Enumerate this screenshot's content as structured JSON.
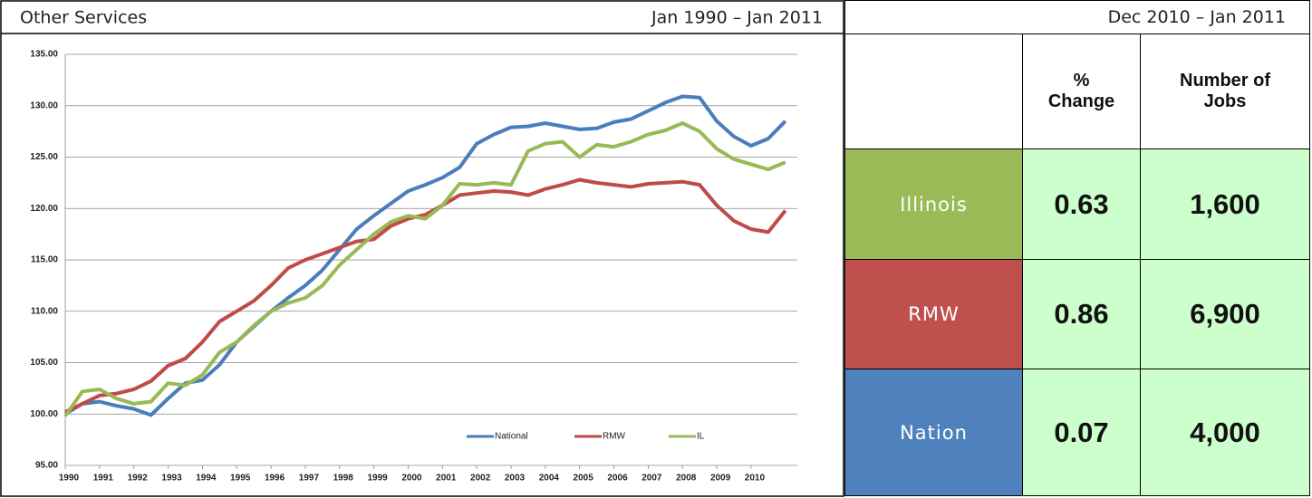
{
  "chart_data": {
    "type": "line",
    "title": "Other Services",
    "subtitle": "Jan 1990 – Jan 2011",
    "x": [
      1990,
      1990.5,
      1991,
      1991.5,
      1992,
      1992.5,
      1993,
      1993.5,
      1994,
      1994.5,
      1995,
      1995.5,
      1996,
      1996.5,
      1997,
      1997.5,
      1998,
      1998.5,
      1999,
      1999.5,
      2000,
      2000.5,
      2001,
      2001.5,
      2002,
      2002.5,
      2003,
      2003.5,
      2004,
      2004.5,
      2005,
      2005.5,
      2006,
      2006.5,
      2007,
      2007.5,
      2008,
      2008.5,
      2009,
      2009.5,
      2010,
      2010.5,
      2011
    ],
    "series": [
      {
        "name": "National",
        "color": "#4a7ebb",
        "values": [
          100.0,
          101.0,
          101.2,
          100.8,
          100.5,
          99.9,
          101.5,
          103.0,
          103.3,
          104.8,
          107.0,
          108.5,
          110.0,
          111.3,
          112.5,
          114.0,
          116.0,
          118.0,
          119.3,
          120.5,
          121.7,
          122.3,
          123.0,
          124.0,
          126.3,
          127.2,
          127.9,
          128.0,
          128.3,
          128.0,
          127.7,
          127.8,
          128.4,
          128.7,
          129.5,
          130.3,
          130.9,
          130.8,
          128.5,
          127.0,
          126.1,
          126.8,
          128.5
        ]
      },
      {
        "name": "RMW",
        "color": "#be4b48",
        "values": [
          100.2,
          101.0,
          101.8,
          102.0,
          102.4,
          103.2,
          104.7,
          105.4,
          107.0,
          109.0,
          110.0,
          111.0,
          112.5,
          114.2,
          115.0,
          115.6,
          116.2,
          116.8,
          117.0,
          118.3,
          119.0,
          119.4,
          120.3,
          121.3,
          121.5,
          121.7,
          121.6,
          121.3,
          121.9,
          122.3,
          122.8,
          122.5,
          122.3,
          122.1,
          122.4,
          122.5,
          122.6,
          122.3,
          120.3,
          118.8,
          118.0,
          117.7,
          119.8
        ]
      },
      {
        "name": "IL",
        "color": "#98b954",
        "values": [
          99.8,
          102.2,
          102.4,
          101.5,
          101.0,
          101.2,
          103.0,
          102.8,
          103.8,
          106.0,
          107.0,
          108.6,
          110.0,
          110.8,
          111.3,
          112.5,
          114.5,
          116.0,
          117.5,
          118.7,
          119.3,
          119.0,
          120.3,
          122.4,
          122.3,
          122.5,
          122.3,
          125.6,
          126.3,
          126.5,
          125.0,
          126.2,
          126.0,
          126.5,
          127.2,
          127.6,
          128.3,
          127.5,
          125.8,
          124.8,
          124.3,
          123.8,
          124.5
        ]
      }
    ],
    "xlim": [
      1990,
      2011.35
    ],
    "xticks": [
      1990,
      1991,
      1992,
      1993,
      1994,
      1995,
      1996,
      1997,
      1998,
      1999,
      2000,
      2001,
      2002,
      2003,
      2004,
      2005,
      2006,
      2007,
      2008,
      2009,
      2010
    ],
    "ylim": [
      95,
      135
    ],
    "yticks": [
      {
        "value": 95,
        "label": "95.00"
      },
      {
        "value": 100,
        "label": "100.00"
      },
      {
        "value": 105,
        "label": "105.00"
      },
      {
        "value": 110,
        "label": "110.00"
      },
      {
        "value": 115,
        "label": "115.00"
      },
      {
        "value": 120,
        "label": "120.00"
      },
      {
        "value": 125,
        "label": "125.00"
      },
      {
        "value": 130,
        "label": "130.00"
      },
      {
        "value": 135,
        "label": "135.00"
      }
    ],
    "grid": true,
    "legend": "bottom"
  },
  "table": {
    "title": "Dec 2010 – Jan 2011",
    "columns": [
      "% Change",
      "Number of Jobs"
    ],
    "rows": [
      [
        "Illinois",
        "0.63",
        "1,600"
      ],
      [
        "RMW",
        "0.86",
        "6,900"
      ],
      [
        "Nation",
        "0.07",
        "4,000"
      ]
    ]
  }
}
